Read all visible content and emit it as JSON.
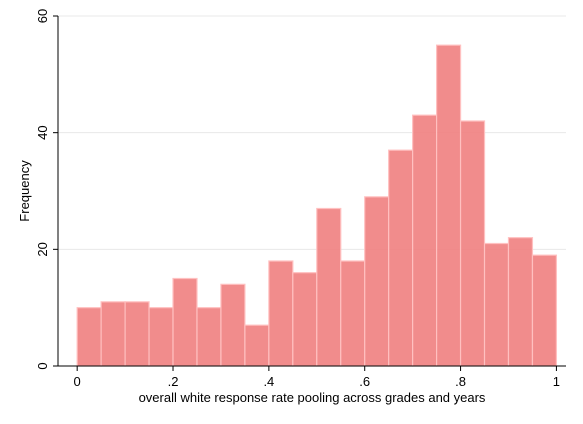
{
  "chart_data": {
    "type": "bar",
    "xlabel": "overall white response rate pooling across grades and years",
    "ylabel": "Frequency",
    "xlim": [
      -0.04,
      1.02
    ],
    "ylim": [
      0,
      60
    ],
    "bin_width": 0.05,
    "bin_starts": [
      0,
      0.05,
      0.1,
      0.15,
      0.2,
      0.25,
      0.3,
      0.35,
      0.4,
      0.45,
      0.5,
      0.55,
      0.6,
      0.65,
      0.7,
      0.75,
      0.8,
      0.85,
      0.9,
      0.95
    ],
    "values": [
      10,
      11,
      11,
      10,
      15,
      10,
      14,
      7,
      18,
      16,
      27,
      18,
      29,
      37,
      43,
      55,
      42,
      21,
      22,
      19
    ],
    "x_ticks": [
      {
        "value": 0,
        "label": "0"
      },
      {
        "value": 0.2,
        "label": ".2"
      },
      {
        "value": 0.4,
        "label": ".4"
      },
      {
        "value": 0.6,
        "label": ".6"
      },
      {
        "value": 0.8,
        "label": ".8"
      },
      {
        "value": 1,
        "label": "1"
      }
    ],
    "y_ticks": [
      {
        "value": 0,
        "label": "0"
      },
      {
        "value": 20,
        "label": "20"
      },
      {
        "value": 40,
        "label": "40"
      },
      {
        "value": 60,
        "label": "60"
      }
    ],
    "grid": true,
    "colors": {
      "bar_fill": "#f08080",
      "bar_edge": "#ffc0c0"
    }
  }
}
